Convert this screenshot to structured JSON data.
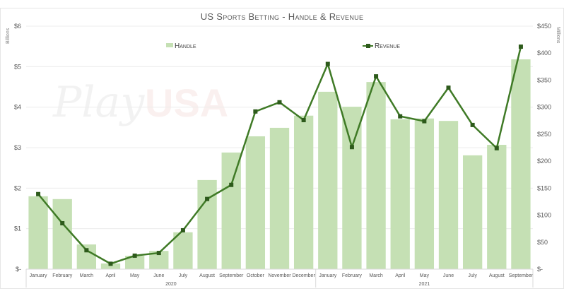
{
  "chart_data": {
    "type": "bar+line",
    "title": "US Sports Betting - Handle & Revenue",
    "watermark": "PlayUSA",
    "categories": [
      "January",
      "February",
      "March",
      "April",
      "May",
      "June",
      "July",
      "August",
      "September",
      "October",
      "November",
      "December",
      "January",
      "February",
      "March",
      "April",
      "May",
      "June",
      "July",
      "August",
      "September"
    ],
    "year_groups": [
      {
        "label": "2020",
        "count": 12
      },
      {
        "label": "2021",
        "count": 9
      }
    ],
    "y_left": {
      "label": "Billions",
      "ylim": [
        0,
        6
      ],
      "ticks": [
        "$-",
        "$1",
        "$2",
        "$3",
        "$4",
        "$5",
        "$6"
      ]
    },
    "y_right": {
      "label": "Millions",
      "ylim": [
        0,
        450
      ],
      "ticks": [
        "$-",
        "$50",
        "$100",
        "$150",
        "$200",
        "$250",
        "$300",
        "$350",
        "$400",
        "$450"
      ]
    },
    "series": [
      {
        "name": "Handle",
        "type": "bar",
        "axis": "left",
        "color": "#c5e0b4",
        "values": [
          1.8,
          1.73,
          0.61,
          0.14,
          0.33,
          0.45,
          0.91,
          2.2,
          2.88,
          3.28,
          3.49,
          3.79,
          4.38,
          4.01,
          4.62,
          3.7,
          3.72,
          3.66,
          2.81,
          3.07,
          5.18
        ]
      },
      {
        "name": "Revenue",
        "type": "line",
        "axis": "right",
        "color": "#3f7a26",
        "marker_color": "#2d5a1b",
        "values": [
          139,
          85,
          35,
          10,
          25,
          30,
          72,
          130,
          156,
          292,
          309,
          276,
          380,
          226,
          357,
          283,
          274,
          336,
          267,
          224,
          412
        ]
      }
    ],
    "legend": "top",
    "grid": true
  }
}
